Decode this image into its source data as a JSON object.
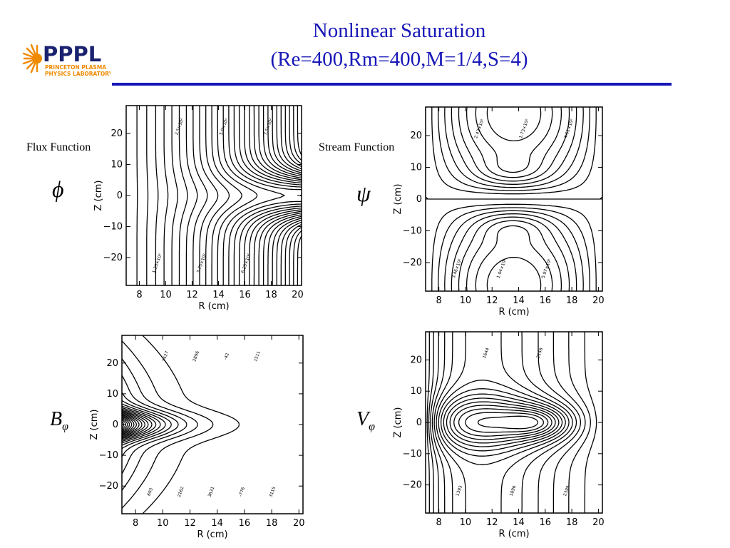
{
  "logo": {
    "text": "PPPL",
    "line1": "PRINCETON PLASMA",
    "line2": "PHYSICS LABORATORY",
    "color": "#f08a00",
    "text_color": "#1a2270"
  },
  "title": {
    "line1": "Nonlinear Saturation",
    "line2": "(Re=400,Rm=400,M=1/4,S=4)",
    "color": "#1818b8"
  },
  "chart_data": [
    {
      "type": "contour",
      "id": "flux",
      "panel_label": "Flux Function",
      "symbol": "ϕ",
      "subscript": "",
      "xlabel": "R (cm)",
      "ylabel": "Z (cm)",
      "xlim": [
        7,
        20.3
      ],
      "ylim": [
        -29,
        29
      ],
      "xticks": [
        8,
        10,
        12,
        14,
        16,
        18,
        20
      ],
      "yticks": [
        -20,
        -10,
        0,
        10,
        20
      ],
      "contour_labels": [
        "1.25×10²",
        "2.5×10²",
        "3.75×10²",
        "5.0×10²",
        "6.25×10²",
        "7.5×10²"
      ]
    },
    {
      "type": "contour",
      "id": "stream",
      "panel_label": "Stream Function",
      "symbol": "ψ",
      "subscript": "",
      "xlabel": "R (cm)",
      "ylabel": "Z (cm)",
      "xlim": [
        7,
        20.3
      ],
      "ylim": [
        -29,
        29
      ],
      "xticks": [
        8,
        10,
        12,
        14,
        16,
        18,
        20
      ],
      "yticks": [
        -20,
        -10,
        0,
        10,
        20
      ],
      "contour_labels": [
        "3.46×10²",
        "2.43×10²",
        "1.04×10²",
        "1.73×10²",
        "5.97×10²",
        "4.51×10²"
      ]
    },
    {
      "type": "contour",
      "id": "bphi",
      "panel_label": "",
      "symbol": "B",
      "subscript": "φ",
      "xlabel": "R (cm)",
      "ylabel": "Z (cm)",
      "xlim": [
        7,
        20.3
      ],
      "ylim": [
        -29,
        29
      ],
      "xticks": [
        8,
        10,
        12,
        14,
        16,
        18,
        20
      ],
      "yticks": [
        -20,
        -10,
        0,
        10,
        20
      ],
      "contour_labels": [
        "693",
        "1427",
        "2162",
        "2896",
        "3631",
        "-42",
        "-776",
        "1511",
        "3115"
      ]
    },
    {
      "type": "contour",
      "id": "vphi",
      "panel_label": "",
      "symbol": "V",
      "subscript": "φ",
      "xlabel": "R (cm)",
      "ylabel": "Z (cm)",
      "xlim": [
        7,
        20.3
      ],
      "ylim": [
        -29,
        29
      ],
      "xticks": [
        8,
        10,
        12,
        14,
        16,
        18,
        20
      ],
      "yticks": [
        -20,
        -10,
        0,
        10,
        20
      ],
      "contour_labels": [
        "1393",
        "1644",
        "1896",
        "2148",
        "2399"
      ]
    }
  ]
}
